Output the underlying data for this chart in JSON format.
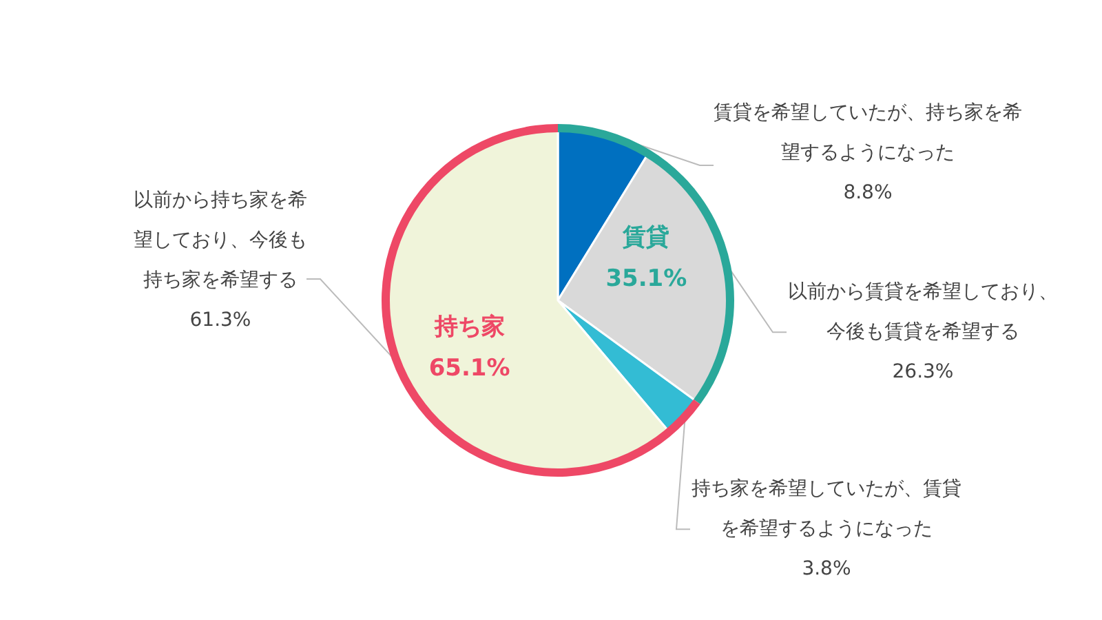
{
  "chart_data": [
    {
      "type": "pie",
      "categories": [
        "賃貸を希望していたが、持ち家を希望するようになった",
        "以前から賃貸を希望しており、今後も賃貸を希望する",
        "持ち家を希望していたが、賃貸を希望するようになった",
        "以前から持ち家を希望しており、今後も持ち家を希望する"
      ],
      "values": [
        8.8,
        26.3,
        3.8,
        61.3
      ],
      "colors": [
        "#0070c0",
        "#d9d9d9",
        "#33bcd4",
        "#f0f4da"
      ],
      "value_labels": [
        "8.8%",
        "26.3%",
        "3.8%",
        "61.3%"
      ]
    },
    {
      "type": "donut",
      "categories": [
        "賃貸",
        "持ち家"
      ],
      "values": [
        35.1,
        65.1
      ],
      "colors": [
        "#2aa89a",
        "#ee4866"
      ],
      "value_labels": [
        "35.1%",
        "65.1%"
      ]
    }
  ]
}
